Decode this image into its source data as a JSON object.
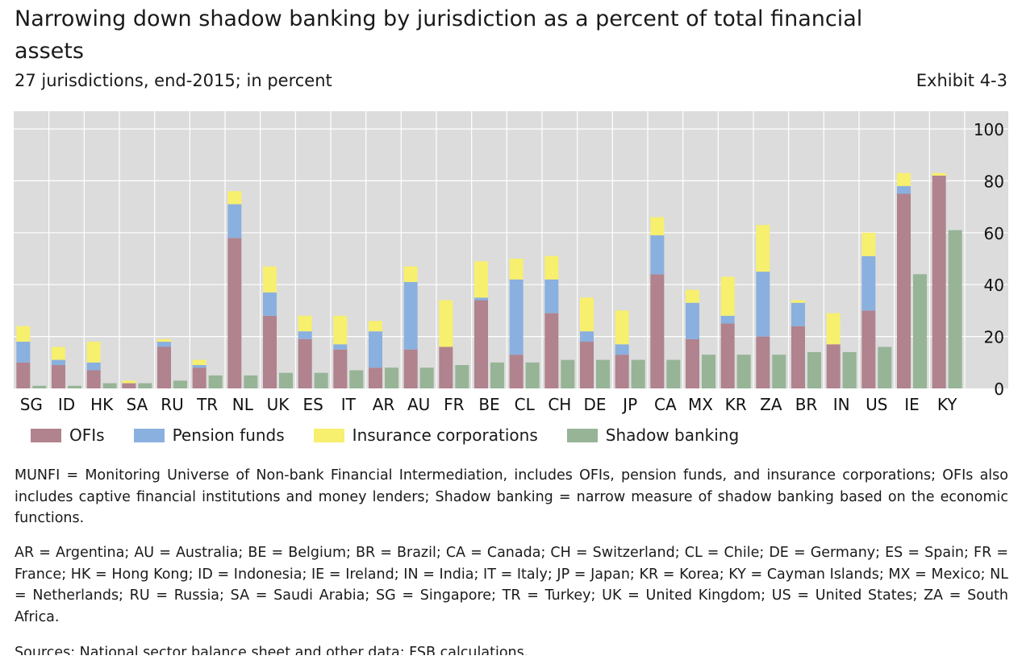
{
  "header": {
    "title": "Narrowing down shadow banking by jurisdiction as a percent of total financial assets",
    "subtitle": "27 jurisdictions, end-2015; in percent",
    "exhibit": "Exhibit 4-3"
  },
  "colors": {
    "ofis": "#b0838e",
    "pension": "#8ab0df",
    "insurance": "#f7ef6e",
    "shadow": "#97b497",
    "plot_bg": "#dcdcdc",
    "grid": "#ffffff"
  },
  "chart_data": {
    "type": "bar",
    "stacked_series": [
      "OFIs",
      "Pension funds",
      "Insurance corporations"
    ],
    "separate_series": [
      "Shadow banking"
    ],
    "categories": [
      "SG",
      "ID",
      "HK",
      "SA",
      "RU",
      "TR",
      "NL",
      "UK",
      "ES",
      "IT",
      "AR",
      "AU",
      "FR",
      "BE",
      "CL",
      "CH",
      "DE",
      "JP",
      "CA",
      "MX",
      "KR",
      "ZA",
      "BR",
      "IN",
      "US",
      "IE",
      "KY"
    ],
    "series": [
      {
        "name": "OFIs",
        "values": [
          10,
          9,
          7,
          2,
          16,
          8,
          58,
          28,
          19,
          15,
          8,
          15,
          16,
          34,
          13,
          29,
          18,
          13,
          44,
          19,
          25,
          20,
          24,
          17,
          30,
          75,
          82
        ]
      },
      {
        "name": "Pension funds",
        "values": [
          8,
          2,
          3,
          0,
          2,
          1,
          13,
          9,
          3,
          2,
          14,
          26,
          0,
          1,
          29,
          13,
          4,
          4,
          15,
          14,
          3,
          25,
          9,
          0,
          21,
          3,
          0
        ]
      },
      {
        "name": "Insurance corporations",
        "values": [
          6,
          5,
          8,
          1,
          1,
          2,
          5,
          10,
          6,
          11,
          4,
          6,
          18,
          14,
          8,
          9,
          13,
          13,
          7,
          5,
          15,
          18,
          1,
          12,
          9,
          5,
          1
        ]
      },
      {
        "name": "Shadow banking",
        "values": [
          1,
          1,
          2,
          2,
          3,
          5,
          5,
          6,
          6,
          7,
          8,
          8,
          9,
          10,
          10,
          11,
          11,
          11,
          11,
          13,
          13,
          13,
          14,
          14,
          16,
          44,
          61
        ]
      }
    ],
    "ylim": [
      0,
      100
    ],
    "yticks": [
      0,
      20,
      40,
      60,
      80,
      100
    ],
    "grid": true,
    "y_axis_side": "right",
    "legend": "bottom"
  },
  "legend": {
    "items": [
      {
        "label": "OFIs",
        "color": "#b0838e"
      },
      {
        "label": "Pension funds",
        "color": "#8ab0df"
      },
      {
        "label": "Insurance corporations",
        "color": "#f7ef6e"
      },
      {
        "label": "Shadow banking",
        "color": "#97b497"
      }
    ]
  },
  "notes": {
    "munfi": "MUNFI = Monitoring Universe of Non-bank Financial Intermediation, includes OFIs, pension funds, and insurance corporations; OFIs also includes captive financial institutions and money lenders; Shadow banking = narrow measure of shadow banking based on the economic functions.",
    "abbreviations": "AR = Argentina;  AU = Australia;  BE = Belgium;  BR = Brazil;  CA = Canada;  CH = Switzerland;  CL = Chile;  DE = Germany;  ES = Spain; FR = France; HK = Hong Kong; ID = Indonesia; IE = Ireland; IN = India; IT = Italy; JP = Japan; KR = Korea; KY = Cayman Islands; MX = Mexico; NL = Netherlands;  RU = Russia;  SA = Saudi  Arabia;  SG = Singapore;  TR = Turkey;  UK = United  Kingdom;  US = United  States; ZA = South Africa.",
    "sources": "Sources: National sector balance sheet and other data; FSB calculations."
  }
}
